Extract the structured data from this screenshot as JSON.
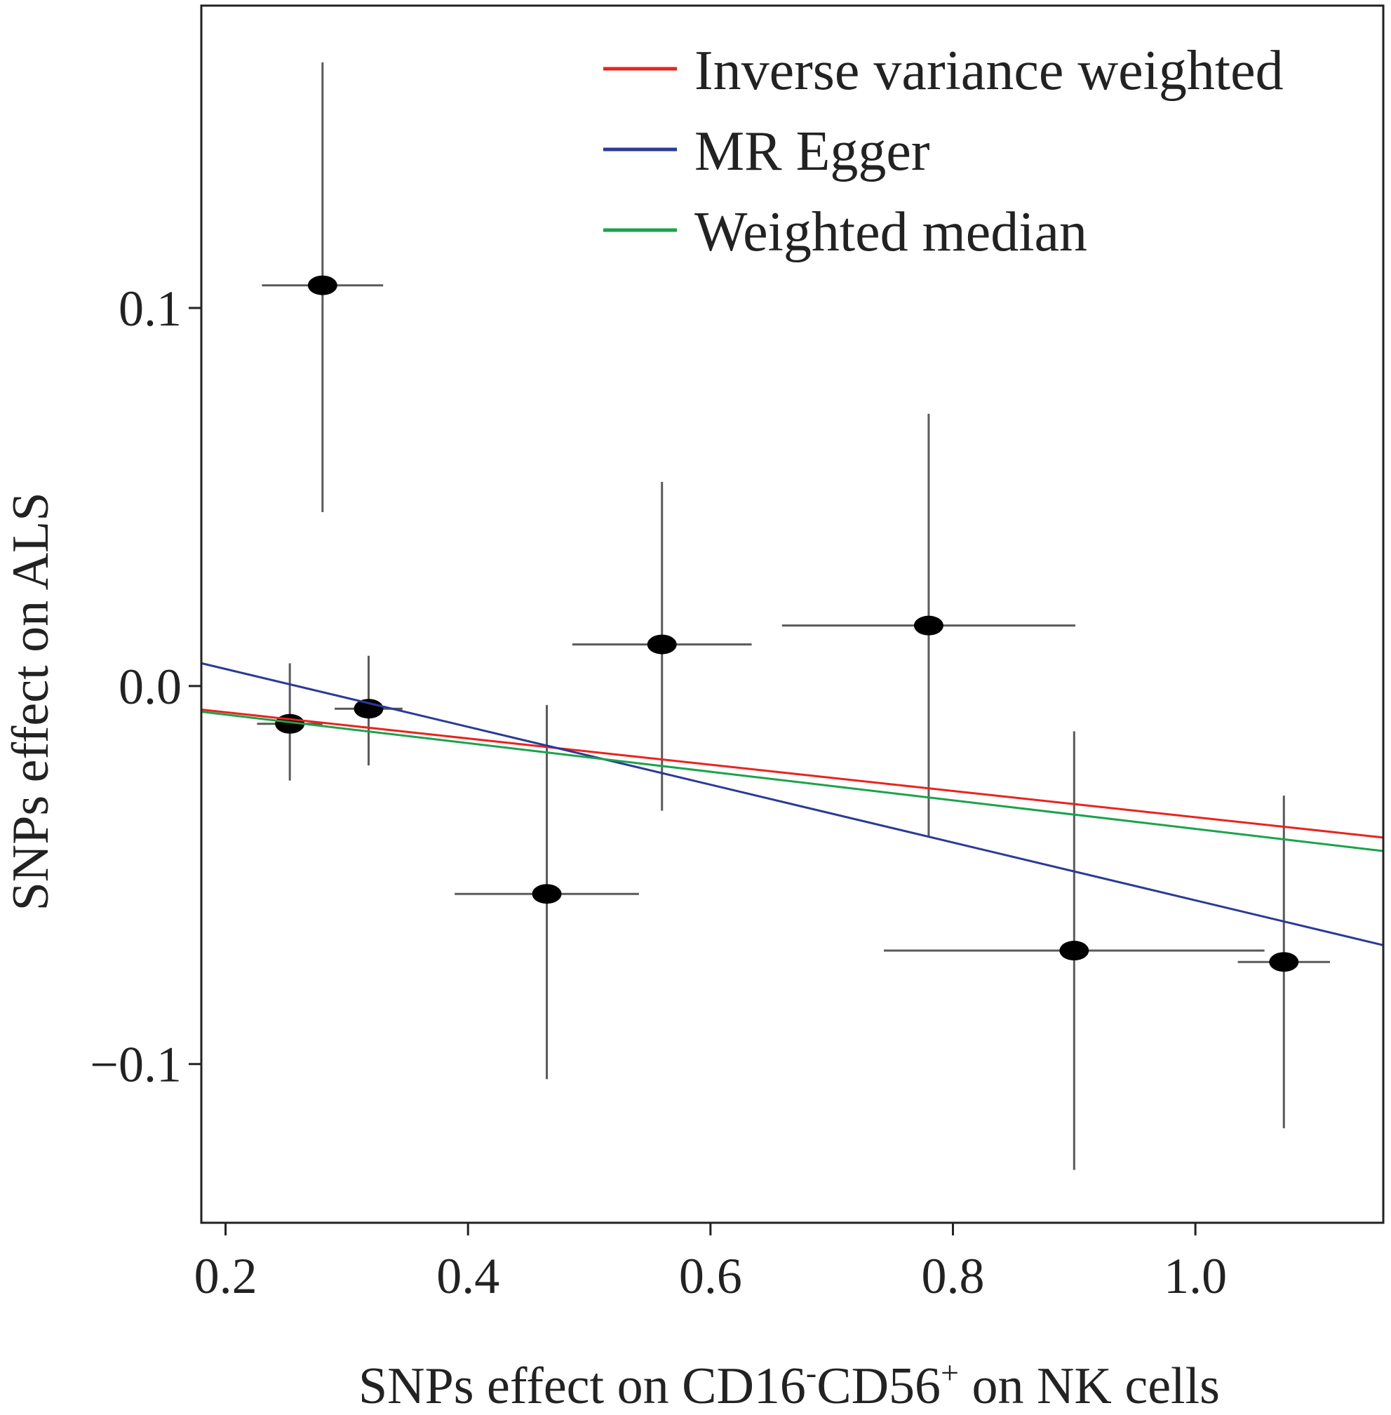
{
  "chart_data": {
    "type": "scatter",
    "title": "",
    "xlabel": {
      "prefix": "SNPs effect on CD16",
      "sup1": "-",
      "mid": "CD56",
      "sup2": "+",
      "suffix": " on NK cells"
    },
    "ylabel": "SNPs effect on ALS",
    "xlim": [
      0.18,
      1.155
    ],
    "ylim": [
      -0.142,
      0.18
    ],
    "xticks": [
      0.2,
      0.4,
      0.6,
      0.8,
      1.0
    ],
    "xtick_labels": [
      "0.2",
      "0.4",
      "0.6",
      "0.8",
      "1.0"
    ],
    "yticks": [
      0.1,
      0.0,
      -0.1
    ],
    "ytick_labels": [
      "0.1",
      "0.0",
      "−0.1"
    ],
    "grid": false,
    "legend_position": "top-right",
    "points": [
      {
        "x": 0.253,
        "y": -0.01,
        "xerr": 0.027,
        "ymin": -0.025,
        "ymax": 0.006
      },
      {
        "x": 0.28,
        "y": 0.106,
        "xerr": 0.05,
        "ymin": 0.046,
        "ymax": 0.165
      },
      {
        "x": 0.318,
        "y": -0.006,
        "xerr": 0.028,
        "ymin": -0.021,
        "ymax": 0.008
      },
      {
        "x": 0.465,
        "y": -0.055,
        "xerr": 0.076,
        "ymin": -0.104,
        "ymax": -0.005
      },
      {
        "x": 0.56,
        "y": 0.011,
        "xerr": 0.074,
        "ymin": -0.033,
        "ymax": 0.054
      },
      {
        "x": 0.78,
        "y": 0.016,
        "xerr": 0.121,
        "ymin": -0.04,
        "ymax": 0.072
      },
      {
        "x": 0.9,
        "y": -0.07,
        "xerr": 0.157,
        "ymin": -0.128,
        "ymax": -0.012
      },
      {
        "x": 1.073,
        "y": -0.073,
        "xerr": 0.038,
        "ymin": -0.117,
        "ymax": -0.029
      }
    ],
    "series": [
      {
        "name": "Inverse variance weighted",
        "color": "#e8241e",
        "intercept": 0.0,
        "slope": -0.0347
      },
      {
        "name": "MR Egger",
        "color": "#2b3a96",
        "intercept": 0.0198,
        "slope": -0.0765
      },
      {
        "name": "Weighted median",
        "color": "#1aa34a",
        "intercept": 0.0,
        "slope": -0.0378
      }
    ]
  }
}
